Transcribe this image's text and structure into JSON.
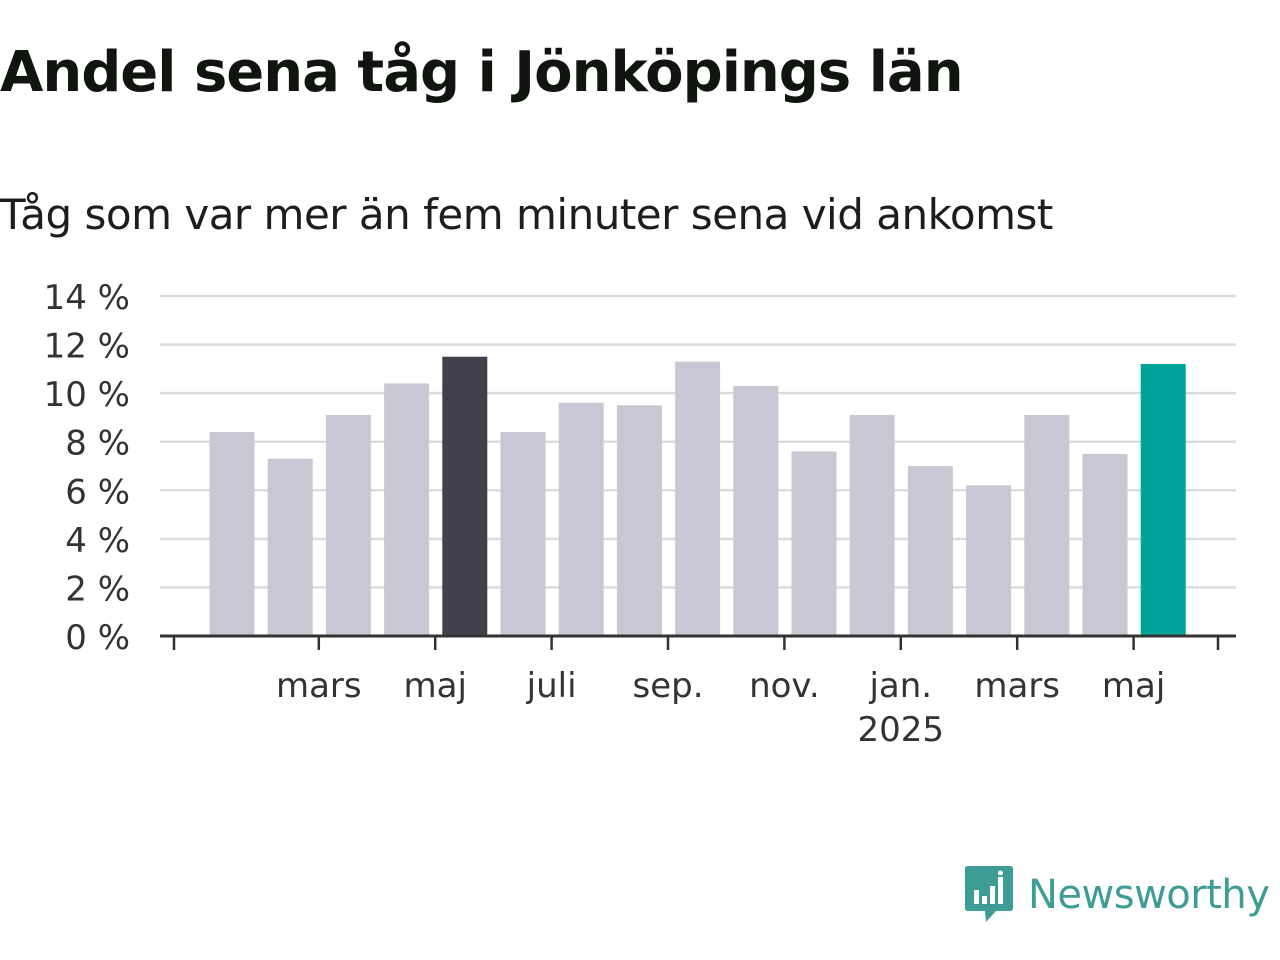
{
  "chart_data": {
    "type": "bar",
    "title": "Andel sena tåg i Jönköpings län",
    "subtitle": "Tåg som var mer än fem minuter sena vid ankomst",
    "ylim": [
      0,
      14
    ],
    "y_ticks": [
      {
        "value": 0,
        "label": "0 %"
      },
      {
        "value": 2,
        "label": "2 %"
      },
      {
        "value": 4,
        "label": "4 %"
      },
      {
        "value": 6,
        "label": "6 %"
      },
      {
        "value": 8,
        "label": "8 %"
      },
      {
        "value": 10,
        "label": "10 %"
      },
      {
        "value": 12,
        "label": "12 %"
      },
      {
        "value": 14,
        "label": "14 %"
      }
    ],
    "categories": [
      "2024-02",
      "2024-03",
      "2024-04",
      "2024-05",
      "2024-06",
      "2024-07",
      "2024-08",
      "2024-09",
      "2024-10",
      "2024-11",
      "2024-12",
      "2025-01",
      "2025-02",
      "2025-03",
      "2025-04",
      "2025-05",
      "2025-06"
    ],
    "values": [
      8.4,
      7.3,
      9.1,
      10.4,
      11.5,
      8.4,
      9.6,
      9.5,
      11.3,
      10.3,
      7.6,
      9.1,
      7.0,
      6.2,
      9.1,
      7.5,
      11.2
    ],
    "bar_colors": [
      "#c8c7d3",
      "#c8c7d3",
      "#c8c7d3",
      "#c8c7d3",
      "#42404e",
      "#c8c7d3",
      "#c8c7d3",
      "#c8c7d3",
      "#c8c7d3",
      "#c8c7d3",
      "#c8c7d3",
      "#c8c7d3",
      "#c8c7d3",
      "#c8c7d3",
      "#c8c7d3",
      "#c8c7d3",
      "#00a39a"
    ],
    "x_ticks": [
      {
        "x": "2024-03",
        "label": "mars"
      },
      {
        "x": "2024-05",
        "label": "maj"
      },
      {
        "x": "2024-07",
        "label": "juli"
      },
      {
        "x": "2024-09",
        "label": "sep."
      },
      {
        "x": "2024-11",
        "label": "nov."
      },
      {
        "x": "2025-01",
        "label": "jan.",
        "sublabel": "2025"
      },
      {
        "x": "2025-03",
        "label": "mars"
      },
      {
        "x": "2025-05",
        "label": "maj"
      }
    ],
    "grid": true
  },
  "colors": {
    "grid": "#dcdcdc",
    "axis": "#333333",
    "highlight_dark": "#42404e",
    "highlight_accent": "#00a39a",
    "brand": "#3d9d95"
  },
  "logo": {
    "text": "Newsworthy",
    "icon": "newsworthy-chart-icon"
  }
}
